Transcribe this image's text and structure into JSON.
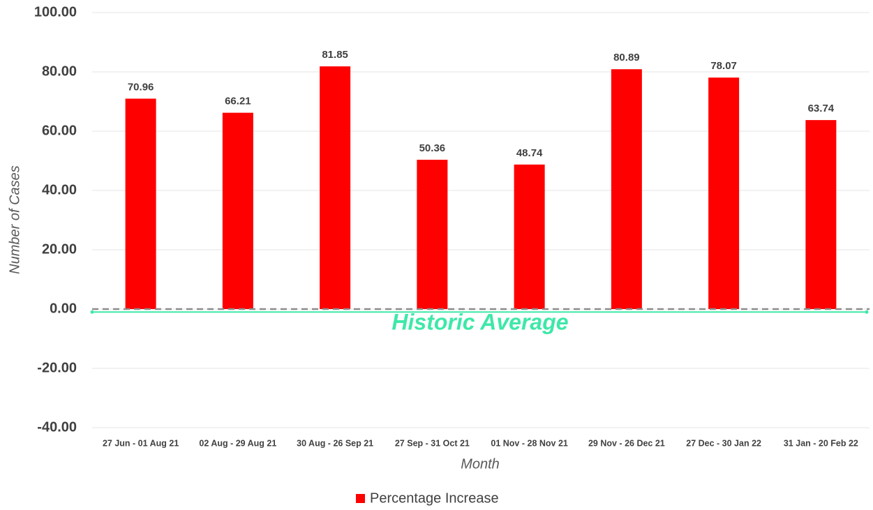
{
  "chart_data": {
    "type": "bar",
    "categories": [
      "27 Jun - 01 Aug 21",
      "02 Aug - 29 Aug 21",
      "30 Aug - 26 Sep 21",
      "27 Sep - 31 Oct 21",
      "01 Nov - 28 Nov 21",
      "29 Nov - 26 Dec 21",
      "27 Dec - 30 Jan 22",
      "31 Jan - 20 Feb 22"
    ],
    "series": [
      {
        "name": "Percentage Increase",
        "color": "#ff0000",
        "values": [
          70.96,
          66.21,
          81.85,
          50.36,
          48.74,
          80.89,
          78.07,
          63.74
        ]
      }
    ],
    "ylim": [
      -40,
      100
    ],
    "yticks": [
      {
        "value": -40,
        "label": "-40.00"
      },
      {
        "value": -20,
        "label": "-20.00"
      },
      {
        "value": 0,
        "label": "0.00"
      },
      {
        "value": 20,
        "label": "20.00"
      },
      {
        "value": 40,
        "label": "40.00"
      },
      {
        "value": 60,
        "label": "60.00"
      },
      {
        "value": 80,
        "label": "80.00"
      },
      {
        "value": 100,
        "label": "100.00"
      }
    ],
    "y_label": "Number of Cases",
    "x_label": "Month",
    "reference_line": {
      "label": "Historic Average",
      "value": -1,
      "color": "#3ee8a8"
    },
    "grid": true,
    "legend": "bottom"
  }
}
